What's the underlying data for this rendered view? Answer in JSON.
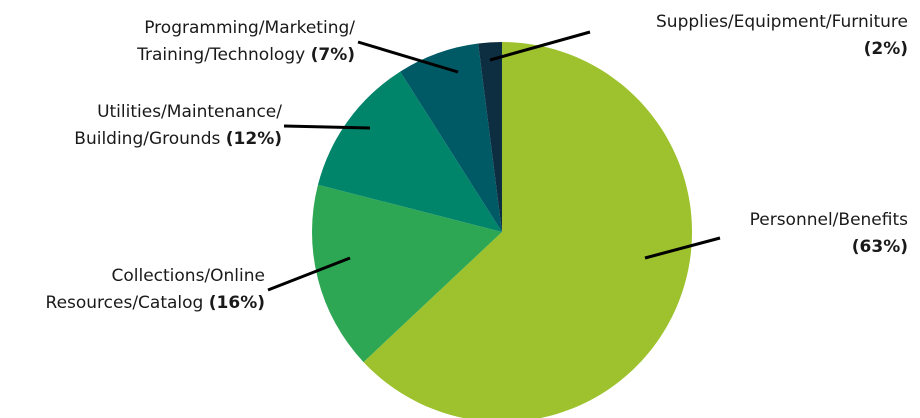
{
  "chart_data": {
    "type": "pie",
    "categories": [
      [
        "Personnel/Benefits"
      ],
      [
        "Collections/Online",
        "Resources/Catalog"
      ],
      [
        "Utilities/Maintenance/",
        "Building/Grounds"
      ],
      [
        "Programming/Marketing/",
        "Training/Technology"
      ],
      [
        "Supplies/Equipment/Furniture"
      ]
    ],
    "values": [
      63,
      16,
      12,
      7,
      2
    ],
    "value_labels": [
      "(63%)",
      "(16%)",
      "(12%)",
      "(7%)",
      "(2%)"
    ],
    "colors": [
      "#9dc22d",
      "#2ea754",
      "#00856b",
      "#005a66",
      "#0d2d40"
    ]
  }
}
